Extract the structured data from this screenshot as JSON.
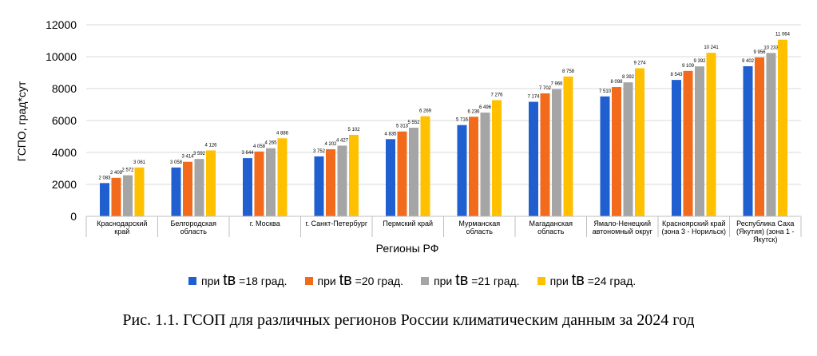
{
  "chart_data": {
    "type": "bar",
    "title": "",
    "xlabel": "Регионы РФ",
    "ylabel": "ГСПО, град*сут",
    "ylim": [
      0,
      12000
    ],
    "yticks": [
      "0",
      "2000",
      "4000",
      "6000",
      "8000",
      "10000",
      "12000"
    ],
    "grid": true,
    "legend_position": "bottom",
    "categories": [
      [
        "Краснодарский",
        "край"
      ],
      [
        "Белгородская",
        "область"
      ],
      [
        "г. Москва"
      ],
      [
        "г. Санкт-Петербург"
      ],
      [
        "Пермский край"
      ],
      [
        "Мурманская",
        "область"
      ],
      [
        "Магаданская",
        "область"
      ],
      [
        "Ямало-Ненецкий",
        "автономный  округ"
      ],
      [
        "Красноярский край",
        "(зона 3 - Норильск)"
      ],
      [
        "Республика Саха",
        "(Якутия) (зона 1 -",
        "Якутск)"
      ]
    ],
    "series": [
      {
        "name": "при  tв  =18 град.",
        "prefix": "при ",
        "var": "tв",
        "suffix": " =18 град.",
        "color": "#1f5fcf",
        "values": [
          2083,
          3058,
          3644,
          3752,
          4835,
          5716,
          7174,
          7510,
          8543,
          9402
        ],
        "labels": [
          "2 083",
          "3 058",
          "3 644",
          "3 752",
          "4 835",
          "5 716",
          "7 174",
          "7 510",
          "8 543",
          "9 402"
        ]
      },
      {
        "name": "при  tв  =20 град.",
        "prefix": "при ",
        "var": "tв",
        "suffix": " =20 град.",
        "color": "#f26a1b",
        "values": [
          2409,
          3414,
          4058,
          4202,
          5313,
          6236,
          7702,
          8098,
          9109,
          9956
        ],
        "labels": [
          "2 409",
          "3 414",
          "4 058",
          "4 202",
          "5 313",
          "6 236",
          "7 702",
          "8 098",
          "9 109",
          "9 956"
        ]
      },
      {
        "name": "при  tв  =21 град.",
        "prefix": "при ",
        "var": "tв",
        "suffix": " =21 град.",
        "color": "#a5a5a5",
        "values": [
          2572,
          3592,
          4265,
          4427,
          5552,
          6496,
          7966,
          8392,
          9392,
          10233
        ],
        "labels": [
          "2 572",
          "3 592",
          "4 265",
          "4 427",
          "5 552",
          "6 496",
          "7 966",
          "8 392",
          "9 392",
          "10 233"
        ]
      },
      {
        "name": "при  tв  =24 град.",
        "prefix": "при ",
        "var": "tв",
        "suffix": " =24 град.",
        "color": "#ffc000",
        "values": [
          3061,
          4126,
          4886,
          5102,
          6269,
          7276,
          8758,
          9274,
          10241,
          11064
        ],
        "labels": [
          "3 061",
          "4 126",
          "4 886",
          "5 102",
          "6 269",
          "7 276",
          "8 758",
          "9 274",
          "10 241",
          "11 064"
        ]
      }
    ]
  },
  "caption": "Рис. 1.1. ГСОП для различных регионов России климатическим данным за 2024 год"
}
